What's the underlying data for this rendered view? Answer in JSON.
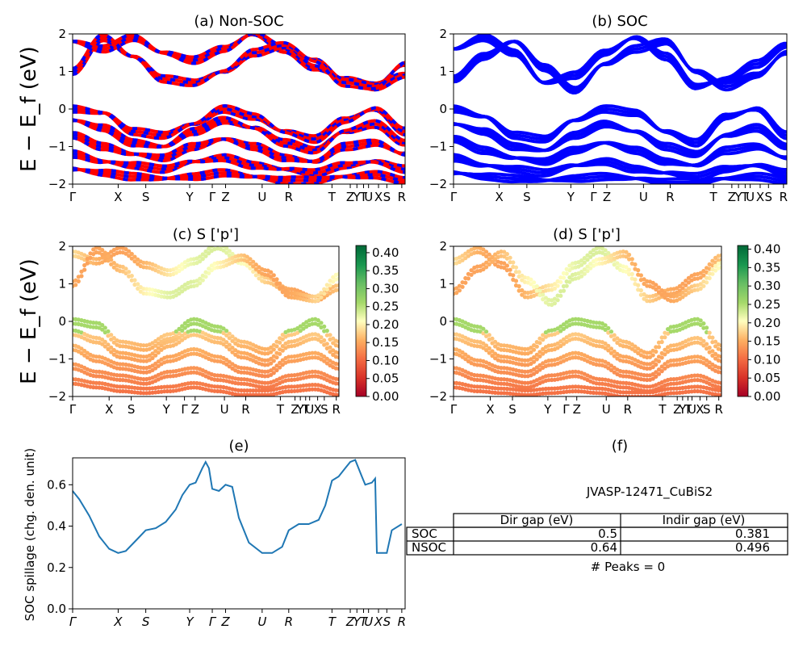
{
  "colors": {
    "nsoc_line": "#ff0000",
    "nsoc_dash": "#0000ff",
    "soc_line": "#0000ff",
    "spillage_line": "#1f77b4",
    "colormap": "RdYlGn"
  },
  "kpoint_labels": [
    "Γ",
    "X",
    "S",
    "Y",
    "Γ",
    "Z",
    "U",
    "R",
    "T",
    "Z",
    "Y",
    "T",
    "U",
    "X",
    "S",
    "R"
  ],
  "kpoint_labels_italic": [
    "Γ",
    "X",
    "S",
    "Y",
    "Γ",
    "Z",
    "U",
    "R",
    "T",
    "Z",
    "Y",
    "T",
    "U",
    "X",
    "S",
    "R"
  ],
  "kpoint_positions": [
    0,
    0.137,
    0.22,
    0.352,
    0.42,
    0.46,
    0.57,
    0.65,
    0.78,
    0.835,
    0.855,
    0.875,
    0.89,
    0.92,
    0.945,
    0.99
  ],
  "panels": {
    "a": {
      "title": "(a) Non-SOC"
    },
    "b": {
      "title": "(b) SOC"
    },
    "c": {
      "title": "(c)  S ['p']"
    },
    "d": {
      "title": "(d) S ['p']"
    },
    "e": {
      "title": "(e)"
    },
    "f": {
      "title": "(f)"
    }
  },
  "band_ylabel": "E − E_f (eV)",
  "band_yticks": [
    "−2",
    "−1",
    "0",
    "1",
    "2"
  ],
  "colorbar_c_ticks": [
    "0.00",
    "0.05",
    "0.10",
    "0.15",
    "0.20",
    "0.25",
    "0.30",
    "0.35",
    "0.40"
  ],
  "colorbar_d_ticks": [
    "0.00",
    "0.05",
    "0.10",
    "0.15",
    "0.20",
    "0.25",
    "0.30",
    "0.35",
    "0.40"
  ],
  "chart_data": [
    {
      "panel": "a",
      "type": "line",
      "title": "(a) Non-SOC",
      "ylabel": "E − E_f (eV)",
      "ylim": [
        -2,
        2
      ],
      "series": [
        {
          "values": [
            1.8,
            1.6,
            1.9,
            1.5,
            1.3,
            1.6,
            2.0,
            1.6,
            1.1,
            0.8,
            0.6,
            0.9
          ]
        },
        {
          "values": [
            1.0,
            1.9,
            1.4,
            0.8,
            0.7,
            1.0,
            1.5,
            1.7,
            1.3,
            0.7,
            0.6,
            1.2
          ]
        },
        {
          "values": [
            0.0,
            -0.1,
            -0.6,
            -0.7,
            -0.4,
            0.0,
            -0.2,
            -0.6,
            -0.8,
            -0.3,
            0.0,
            -0.6
          ]
        },
        {
          "values": [
            -0.3,
            -0.5,
            -0.9,
            -1.0,
            -0.6,
            -0.3,
            -0.5,
            -0.9,
            -1.1,
            -0.6,
            -0.4,
            -0.9
          ]
        },
        {
          "values": [
            -0.7,
            -1.0,
            -1.2,
            -1.3,
            -1.0,
            -0.8,
            -1.0,
            -1.3,
            -1.4,
            -1.0,
            -0.9,
            -1.2
          ]
        },
        {
          "values": [
            -1.2,
            -1.4,
            -1.5,
            -1.6,
            -1.4,
            -1.3,
            -1.5,
            -1.6,
            -1.7,
            -1.5,
            -1.4,
            -1.6
          ]
        },
        {
          "values": [
            -1.6,
            -1.7,
            -1.8,
            -1.85,
            -1.8,
            -1.7,
            -1.8,
            -1.9,
            -1.9,
            -1.8,
            -1.75,
            -1.9
          ]
        }
      ]
    },
    {
      "panel": "b",
      "type": "line",
      "title": "(b) SOC",
      "ylim": [
        -2,
        2
      ],
      "series": [
        {
          "values": [
            1.6,
            1.9,
            1.5,
            0.7,
            0.9,
            1.5,
            1.9,
            1.4,
            0.6,
            0.8,
            1.2,
            1.7
          ]
        },
        {
          "values": [
            0.8,
            1.4,
            1.8,
            1.1,
            0.5,
            1.2,
            1.6,
            1.8,
            1.0,
            0.6,
            0.9,
            1.5
          ]
        },
        {
          "values": [
            0.0,
            -0.2,
            -0.7,
            -0.8,
            -0.3,
            0.0,
            -0.1,
            -0.6,
            -0.9,
            -0.2,
            0.0,
            -0.7
          ]
        },
        {
          "values": [
            -0.4,
            -0.6,
            -1.0,
            -1.1,
            -0.7,
            -0.4,
            -0.6,
            -1.0,
            -1.2,
            -0.7,
            -0.5,
            -1.0
          ]
        },
        {
          "values": [
            -0.8,
            -1.1,
            -1.3,
            -1.4,
            -1.1,
            -0.9,
            -1.1,
            -1.4,
            -1.5,
            -1.1,
            -1.0,
            -1.3
          ]
        },
        {
          "values": [
            -1.3,
            -1.5,
            -1.6,
            -1.7,
            -1.5,
            -1.4,
            -1.6,
            -1.7,
            -1.8,
            -1.6,
            -1.5,
            -1.7
          ]
        },
        {
          "values": [
            -1.7,
            -1.8,
            -1.85,
            -1.9,
            -1.85,
            -1.8,
            -1.85,
            -1.95,
            -1.95,
            -1.85,
            -1.8,
            -1.9
          ]
        }
      ]
    },
    {
      "panel": "c",
      "type": "scatter",
      "title": "(c)  S ['p']",
      "ylim": [
        -2,
        2
      ],
      "clim": [
        0,
        0.42
      ]
    },
    {
      "panel": "d",
      "type": "scatter",
      "title": "(d) S ['p']",
      "ylim": [
        -2,
        2
      ],
      "clim": [
        0,
        0.41
      ]
    },
    {
      "panel": "e",
      "type": "line",
      "title": "(e)",
      "ylabel": "SOC spillage (chg. den. unit)",
      "ylim": [
        0,
        0.73
      ],
      "yticks": [
        "0.0",
        "0.2",
        "0.4",
        "0.6"
      ],
      "x": [
        0,
        0.02,
        0.05,
        0.08,
        0.11,
        0.137,
        0.16,
        0.19,
        0.22,
        0.25,
        0.28,
        0.31,
        0.33,
        0.352,
        0.37,
        0.39,
        0.4,
        0.41,
        0.42,
        0.44,
        0.46,
        0.48,
        0.5,
        0.53,
        0.57,
        0.6,
        0.63,
        0.65,
        0.68,
        0.71,
        0.74,
        0.76,
        0.78,
        0.8,
        0.82,
        0.835,
        0.85,
        0.87,
        0.88,
        0.9,
        0.91,
        0.915,
        0.945,
        0.96,
        0.99
      ],
      "values": [
        0.57,
        0.53,
        0.45,
        0.35,
        0.29,
        0.27,
        0.28,
        0.33,
        0.38,
        0.39,
        0.42,
        0.48,
        0.55,
        0.6,
        0.61,
        0.68,
        0.71,
        0.68,
        0.58,
        0.57,
        0.6,
        0.59,
        0.44,
        0.32,
        0.27,
        0.27,
        0.3,
        0.38,
        0.41,
        0.41,
        0.43,
        0.5,
        0.62,
        0.64,
        0.68,
        0.71,
        0.72,
        0.64,
        0.6,
        0.61,
        0.63,
        0.27,
        0.27,
        0.38,
        0.41
      ]
    }
  ],
  "table": {
    "title": "JVASP-12471_CuBiS2",
    "headers": [
      "Dir gap (eV)",
      "Indir gap (eV)"
    ],
    "rows": [
      {
        "label": "SOC",
        "dir": "0.5",
        "indir": "0.381"
      },
      {
        "label": "NSOC",
        "dir": "0.64",
        "indir": "0.496"
      }
    ],
    "peaks": "# Peaks = 0"
  }
}
